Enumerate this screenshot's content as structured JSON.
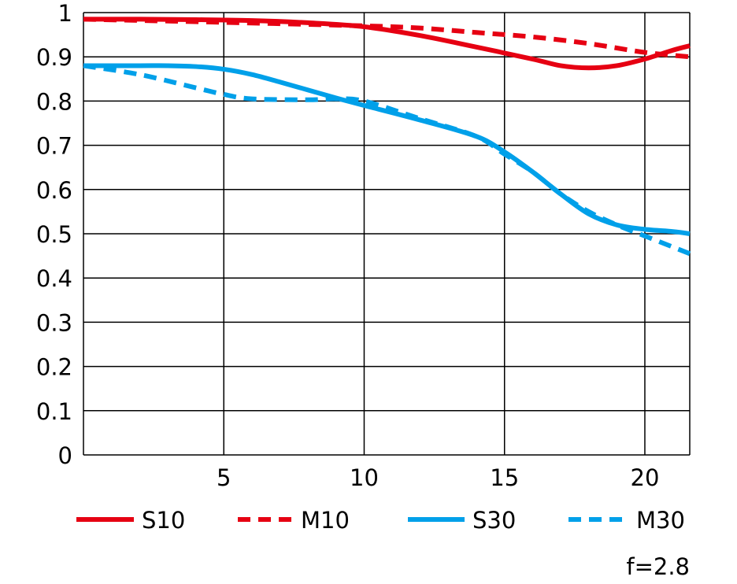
{
  "chart_data": {
    "type": "line",
    "title": "",
    "xlabel": "",
    "ylabel": "",
    "xlim": [
      0,
      21.6
    ],
    "ylim": [
      0,
      1
    ],
    "grid": true,
    "x_ticks": [
      5,
      10,
      15,
      20
    ],
    "x_tick_labels": [
      "5",
      "10",
      "15",
      "20"
    ],
    "y_ticks": [
      0,
      0.1,
      0.2,
      0.3,
      0.4,
      0.5,
      0.6,
      0.7,
      0.8,
      0.9,
      1
    ],
    "y_tick_labels": [
      "0",
      "0.1",
      "0.2",
      "0.3",
      "0.4",
      "0.5",
      "0.6",
      "0.7",
      "0.8",
      "0.9",
      "1"
    ],
    "legend_placement": "bottom",
    "annotation": "f=2.8",
    "series": [
      {
        "name": "S10",
        "color": "#e60012",
        "style": "solid",
        "x": [
          0,
          2,
          4,
          6,
          8,
          10,
          12,
          14,
          16,
          17,
          18,
          19,
          20,
          21,
          21.6
        ],
        "y": [
          0.985,
          0.985,
          0.984,
          0.982,
          0.977,
          0.968,
          0.948,
          0.922,
          0.895,
          0.88,
          0.875,
          0.88,
          0.895,
          0.915,
          0.925
        ]
      },
      {
        "name": "M10",
        "color": "#e60012",
        "style": "dashed",
        "x": [
          0,
          5,
          10,
          12,
          14,
          16,
          18,
          20,
          21.6
        ],
        "y": [
          0.985,
          0.978,
          0.97,
          0.965,
          0.955,
          0.945,
          0.93,
          0.91,
          0.9
        ]
      },
      {
        "name": "S30",
        "color": "#00a0e9",
        "style": "solid",
        "x": [
          0,
          2,
          3,
          4,
          5,
          6,
          7,
          8,
          9,
          10,
          12,
          14,
          15,
          16,
          17,
          18,
          19,
          20,
          21,
          21.6
        ],
        "y": [
          0.88,
          0.88,
          0.88,
          0.878,
          0.872,
          0.86,
          0.843,
          0.825,
          0.807,
          0.79,
          0.757,
          0.72,
          0.685,
          0.64,
          0.59,
          0.545,
          0.52,
          0.51,
          0.505,
          0.5
        ]
      },
      {
        "name": "M30",
        "color": "#00a0e9",
        "style": "dashed",
        "x": [
          0,
          2,
          4,
          5,
          6,
          8,
          9,
          10,
          12,
          14,
          15,
          16,
          17,
          18,
          19,
          20,
          21,
          21.6
        ],
        "y": [
          0.88,
          0.86,
          0.83,
          0.815,
          0.805,
          0.803,
          0.805,
          0.8,
          0.76,
          0.72,
          0.68,
          0.64,
          0.59,
          0.55,
          0.52,
          0.495,
          0.47,
          0.455
        ]
      }
    ]
  }
}
